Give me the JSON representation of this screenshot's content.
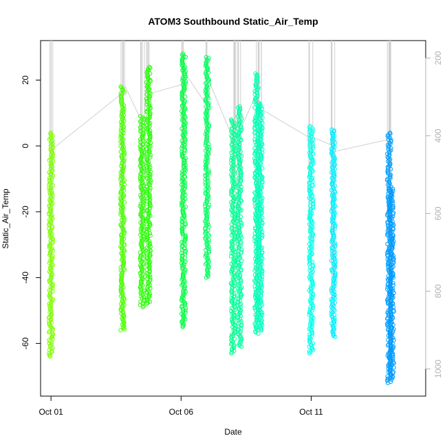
{
  "chart_data": {
    "type": "scatter",
    "title": "ATOM3 Southbound Static_Air_Temp",
    "xlabel": "Date",
    "ylabel": "Static_Air_Temp",
    "x_ticks": [
      "Oct 01",
      "Oct 06",
      "Oct 11"
    ],
    "x_tick_days": [
      1,
      6,
      11
    ],
    "xlim_days": [
      0.6,
      15.4
    ],
    "y_ticks": [
      20,
      0,
      -20,
      -40,
      -60
    ],
    "ylim": [
      -76,
      32
    ],
    "y2_ticks": [
      200,
      400,
      600,
      800,
      1000
    ],
    "y2lim": [
      1070,
      155
    ],
    "y2_reversed": true,
    "grid": false,
    "series": [
      {
        "day": 1.0,
        "ymin": -64,
        "ymax": 4,
        "color": "#7fff00",
        "y2": [
          400,
          980
        ]
      },
      {
        "day": 3.75,
        "ymin": -56,
        "ymax": 18,
        "color": "#48ff00",
        "y2": [
          260,
          880
        ]
      },
      {
        "day": 4.5,
        "ymin": -49,
        "ymax": 9,
        "color": "#2aff00",
        "y2": [
          300,
          800
        ]
      },
      {
        "day": 4.75,
        "ymin": -48,
        "ymax": 24,
        "color": "#22ff00",
        "y2": [
          230,
          790
        ]
      },
      {
        "day": 6.1,
        "ymin": -55,
        "ymax": 28,
        "color": "#00ff40",
        "y2": [
          190,
          860
        ]
      },
      {
        "day": 7.0,
        "ymin": -40,
        "ymax": 27,
        "color": "#00ff60",
        "y2": [
          200,
          780
        ]
      },
      {
        "day": 8.0,
        "ymin": -63,
        "ymax": 8,
        "color": "#00ff90",
        "y2": [
          380,
          1000
        ]
      },
      {
        "day": 8.25,
        "ymin": -61,
        "ymax": 12,
        "color": "#00ffa0",
        "y2": [
          330,
          970
        ]
      },
      {
        "day": 8.9,
        "ymin": -57,
        "ymax": 22,
        "color": "#00ffb0",
        "y2": [
          250,
          940
        ]
      },
      {
        "day": 9.05,
        "ymin": -56,
        "ymax": 13,
        "color": "#00ffc0",
        "y2": [
          320,
          930
        ]
      },
      {
        "day": 11.0,
        "ymin": -63,
        "ymax": 6,
        "color": "#00ffe8",
        "y2": [
          400,
          1000
        ]
      },
      {
        "day": 11.85,
        "ymin": -58,
        "ymax": 5,
        "color": "#00eeff",
        "y2": [
          390,
          950
        ]
      },
      {
        "day": 14.0,
        "ymin": -72,
        "ymax": 4,
        "color": "#00a0ff",
        "y2": [
          400,
          1050
        ]
      },
      {
        "day": 14.1,
        "ymin": -71,
        "ymax": -13,
        "color": "#0099ff",
        "y2": [
          580,
          1050
        ]
      }
    ]
  }
}
